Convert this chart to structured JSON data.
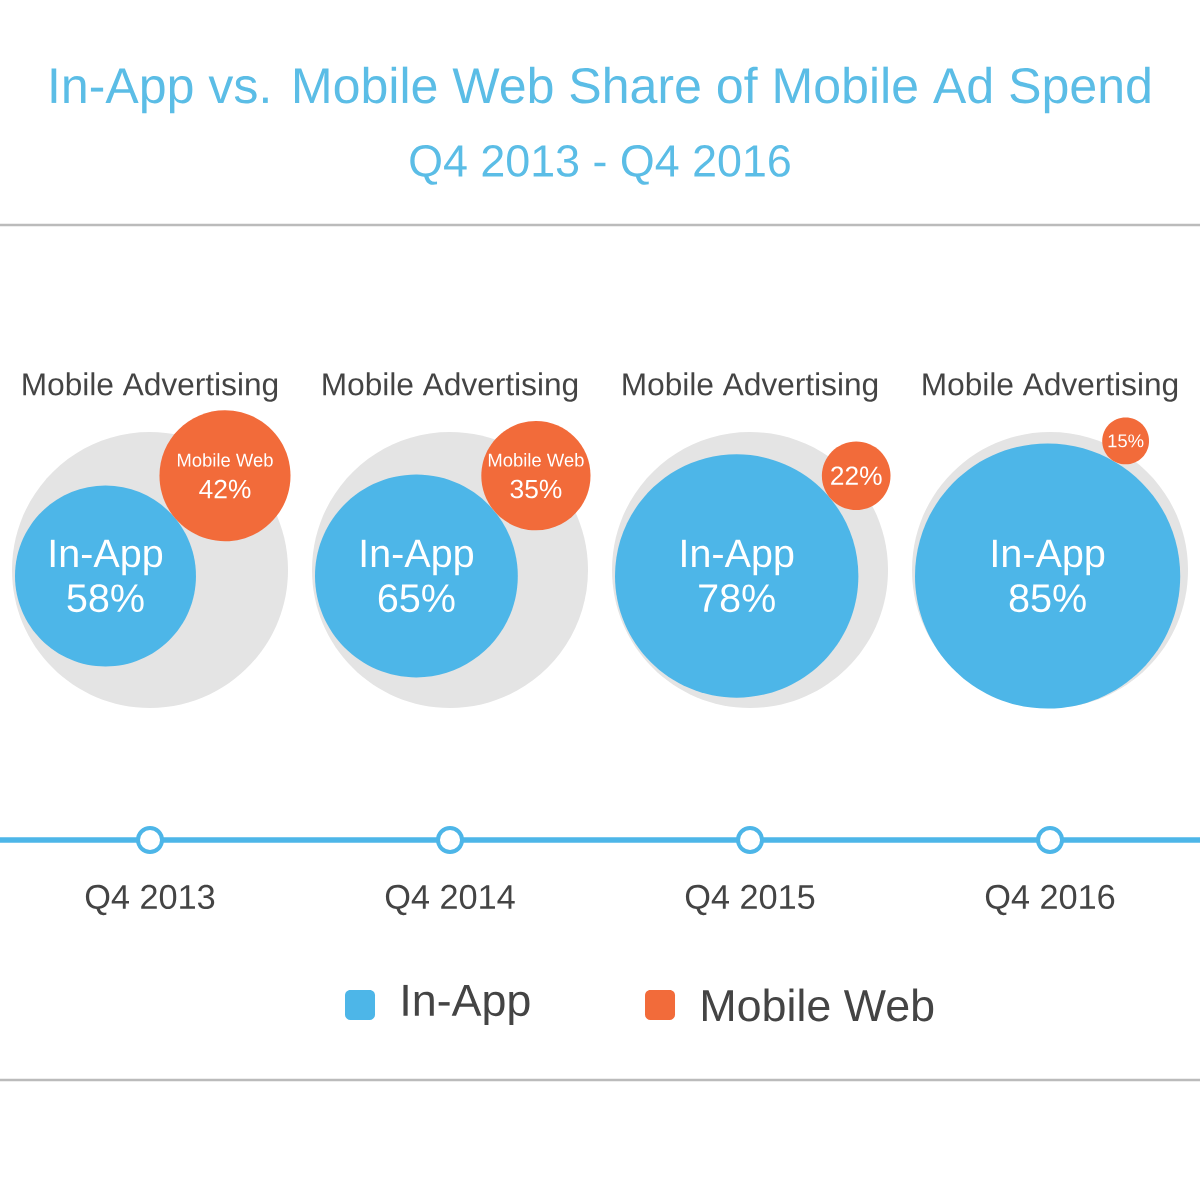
{
  "chart_data": {
    "type": "other",
    "title": "In-App vs. Mobile Web Share of Mobile Ad Spend",
    "subtitle": "Q4 2013 - Q4 2016",
    "categories": [
      "Q4 2013",
      "Q4 2014",
      "Q4 2015",
      "Q4 2016"
    ],
    "series": [
      {
        "name": "In-App",
        "color": "#4db6e8",
        "values": [
          58,
          65,
          78,
          85
        ],
        "value_labels": [
          "58%",
          "65%",
          "78%",
          "85%"
        ]
      },
      {
        "name": "Mobile Web",
        "color": "#f26b3a",
        "values": [
          42,
          35,
          22,
          15
        ],
        "value_labels": [
          "42%",
          "35%",
          "22%",
          "15%"
        ]
      }
    ],
    "annotations": [
      "Mobile Advertising",
      "Mobile Advertising",
      "Mobile Advertising",
      "Mobile Advertising"
    ],
    "legend": "bottom"
  }
}
